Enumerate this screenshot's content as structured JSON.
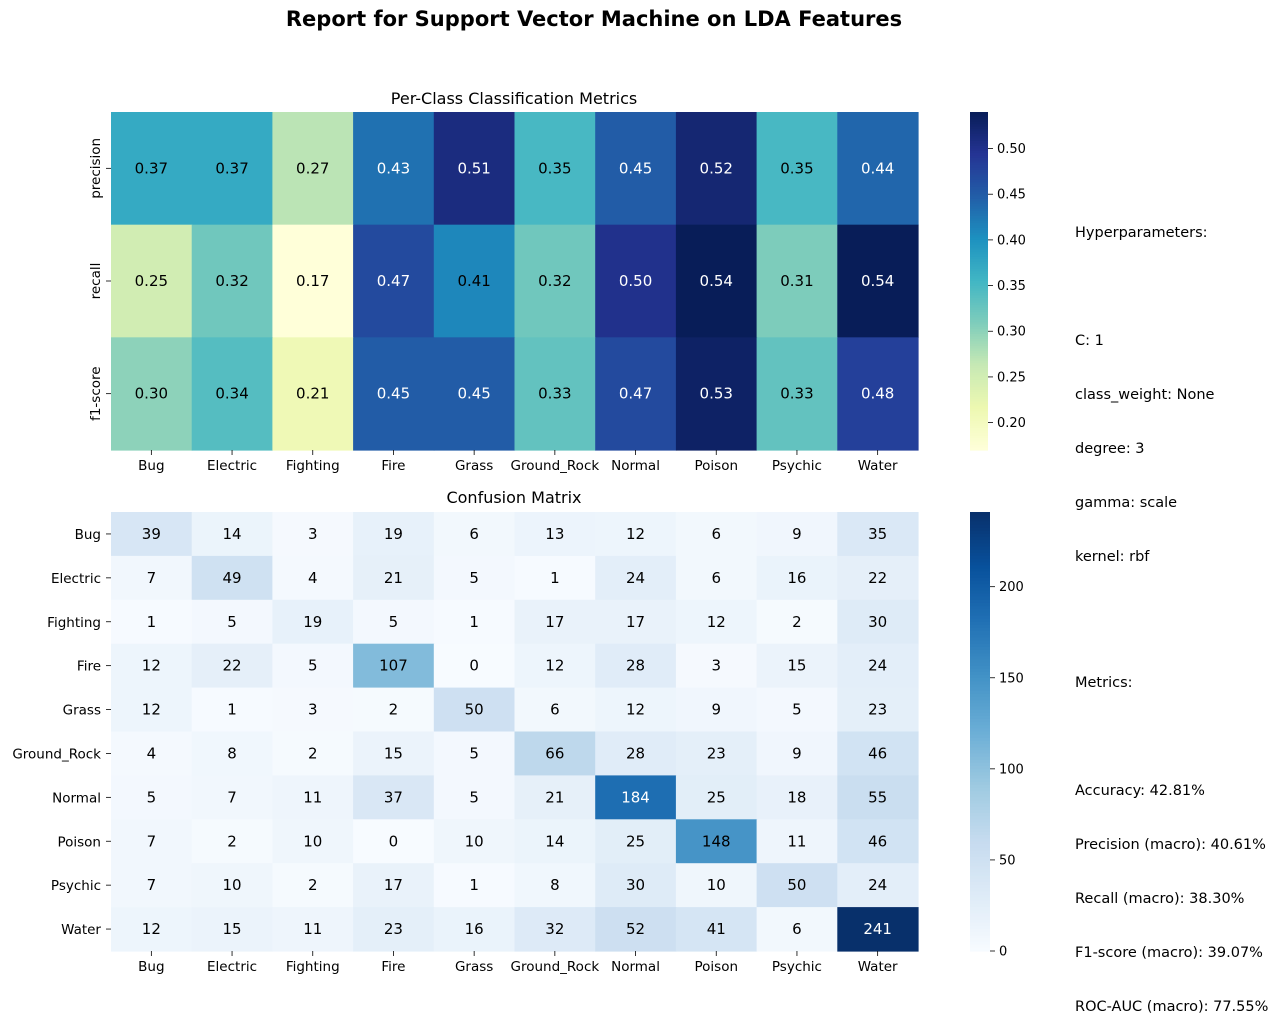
{
  "title": "Report for Support Vector Machine on LDA Features",
  "chart_data": [
    {
      "type": "heatmap",
      "title": "Per-Class Classification Metrics",
      "colormap": "YlGnBu",
      "x_categories": [
        "Bug",
        "Electric",
        "Fighting",
        "Fire",
        "Grass",
        "Ground_Rock",
        "Normal",
        "Poison",
        "Psychic",
        "Water"
      ],
      "y_categories": [
        "precision",
        "recall",
        "f1-score"
      ],
      "values": [
        [
          0.37,
          0.37,
          0.27,
          0.43,
          0.51,
          0.35,
          0.45,
          0.52,
          0.35,
          0.44
        ],
        [
          0.25,
          0.32,
          0.17,
          0.47,
          0.41,
          0.32,
          0.5,
          0.54,
          0.31,
          0.54
        ],
        [
          0.3,
          0.34,
          0.21,
          0.45,
          0.45,
          0.33,
          0.47,
          0.53,
          0.33,
          0.48
        ]
      ],
      "value_format": "0.00",
      "vmin": 0.17,
      "vmax": 0.54,
      "colorbar_ticks": [
        0.2,
        0.25,
        0.3,
        0.35,
        0.4,
        0.45,
        0.5
      ],
      "colorbar_tick_labels": [
        "0.20",
        "0.25",
        "0.30",
        "0.35",
        "0.40",
        "0.45",
        "0.50"
      ]
    },
    {
      "type": "heatmap",
      "title": "Confusion Matrix",
      "colormap": "Blues",
      "x_categories": [
        "Bug",
        "Electric",
        "Fighting",
        "Fire",
        "Grass",
        "Ground_Rock",
        "Normal",
        "Poison",
        "Psychic",
        "Water"
      ],
      "y_categories": [
        "Bug",
        "Electric",
        "Fighting",
        "Fire",
        "Grass",
        "Ground_Rock",
        "Normal",
        "Poison",
        "Psychic",
        "Water"
      ],
      "values": [
        [
          39,
          14,
          3,
          19,
          6,
          13,
          12,
          6,
          9,
          35
        ],
        [
          7,
          49,
          4,
          21,
          5,
          1,
          24,
          6,
          16,
          22
        ],
        [
          1,
          5,
          19,
          5,
          1,
          17,
          17,
          12,
          2,
          30
        ],
        [
          12,
          22,
          5,
          107,
          0,
          12,
          28,
          3,
          15,
          24
        ],
        [
          12,
          1,
          3,
          2,
          50,
          6,
          12,
          9,
          5,
          23
        ],
        [
          4,
          8,
          2,
          15,
          5,
          66,
          28,
          23,
          9,
          46
        ],
        [
          5,
          7,
          11,
          37,
          5,
          21,
          184,
          25,
          18,
          55
        ],
        [
          7,
          2,
          10,
          0,
          10,
          14,
          25,
          148,
          11,
          46
        ],
        [
          7,
          10,
          2,
          17,
          1,
          8,
          30,
          10,
          50,
          24
        ],
        [
          12,
          15,
          11,
          23,
          16,
          32,
          52,
          41,
          6,
          241
        ]
      ],
      "value_format": "0",
      "vmin": 0,
      "vmax": 241,
      "colorbar_ticks": [
        0,
        50,
        100,
        150,
        200
      ],
      "colorbar_tick_labels": [
        "0",
        "50",
        "100",
        "150",
        "200"
      ]
    }
  ],
  "hyperparameters": {
    "heading": "Hyperparameters:",
    "lines": [
      "C: 1",
      "class_weight: None",
      "degree: 3",
      "gamma: scale",
      "kernel: rbf"
    ]
  },
  "metrics": {
    "heading": "Metrics:",
    "lines": [
      "Accuracy: 42.81%",
      "Precision (macro): 40.61%",
      "Recall (macro): 38.30%",
      "F1-score (macro): 39.07%",
      "ROC-AUC (macro): 77.55%"
    ]
  }
}
